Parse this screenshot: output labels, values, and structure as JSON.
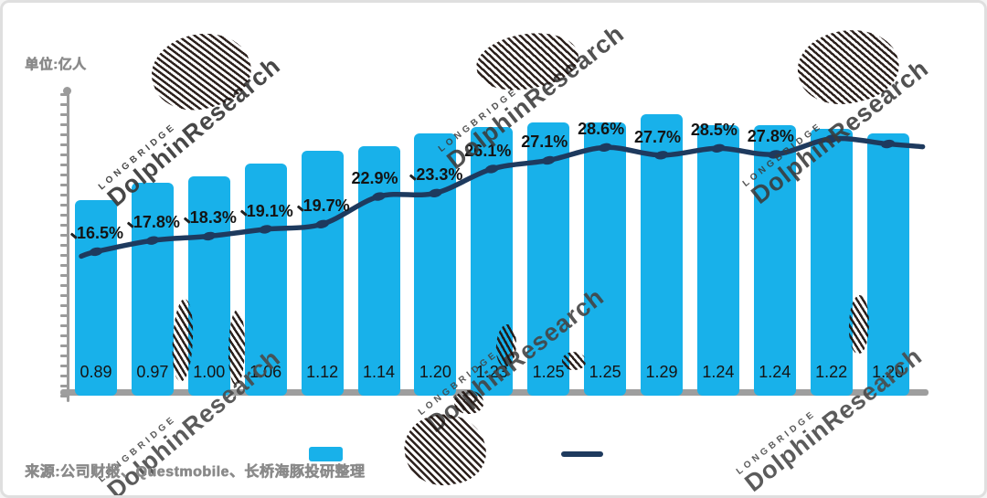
{
  "page": {
    "unit_label": "单位:亿人",
    "source_text": "来源:公司财报、Questmobile、长桥海豚投研整理",
    "title": "",
    "title_note": "title present but scribbled out (redacted)"
  },
  "watermark": {
    "small": "LONGBRIDGE",
    "big": "DolphinResearch"
  },
  "colors": {
    "bar": "#18b1ea",
    "line": "#1e3a5e",
    "axis": "#9b9b9b",
    "label_text": "#141414",
    "muted_text": "#8a8a8a"
  },
  "legend": {
    "bar_label": "",
    "line_label": "",
    "note": "legend labels scribbled out"
  },
  "chart_data": {
    "type": "bar",
    "combo_line": true,
    "title": "",
    "unit": "亿人",
    "n_points": 15,
    "categories": [
      "",
      "",
      "",
      "",
      "",
      "",
      "",
      "",
      "",
      "",
      "",
      "",
      "",
      "",
      ""
    ],
    "bars": {
      "values": [
        0.89,
        0.97,
        1.0,
        1.06,
        1.12,
        1.14,
        1.2,
        1.23,
        1.25,
        1.25,
        1.29,
        1.24,
        1.24,
        1.22,
        1.2
      ],
      "labels": [
        "0.89",
        "0.97",
        "1.00",
        "1.06",
        "1.12",
        "1.14",
        "1.20",
        "1.23",
        "1.25",
        "1.25",
        "1.29",
        "1.24",
        "1.24",
        "1.22",
        "1.20"
      ]
    },
    "line": {
      "values_percent": [
        16.5,
        17.8,
        18.3,
        19.1,
        19.7,
        22.9,
        23.3,
        26.1,
        27.1,
        28.6,
        27.7,
        28.5,
        27.8,
        29.6,
        29.0
      ],
      "labels": [
        "16.5%",
        "17.8%",
        "18.3%",
        "19.1%",
        "19.7%",
        "22.9%",
        "23.3%",
        "26.1%",
        "27.1%",
        "28.6%",
        "27.7%",
        "28.5%",
        "27.8%",
        "",
        ""
      ],
      "note": "last two point labels hidden under scribble; those two values estimated from line position"
    },
    "ylim_bars": [
      0,
      1.4
    ],
    "ylim_line_percent": [
      0,
      35
    ],
    "grid": false,
    "x_axis_tick_labels_visible": false,
    "legend_position": "bottom-center"
  }
}
